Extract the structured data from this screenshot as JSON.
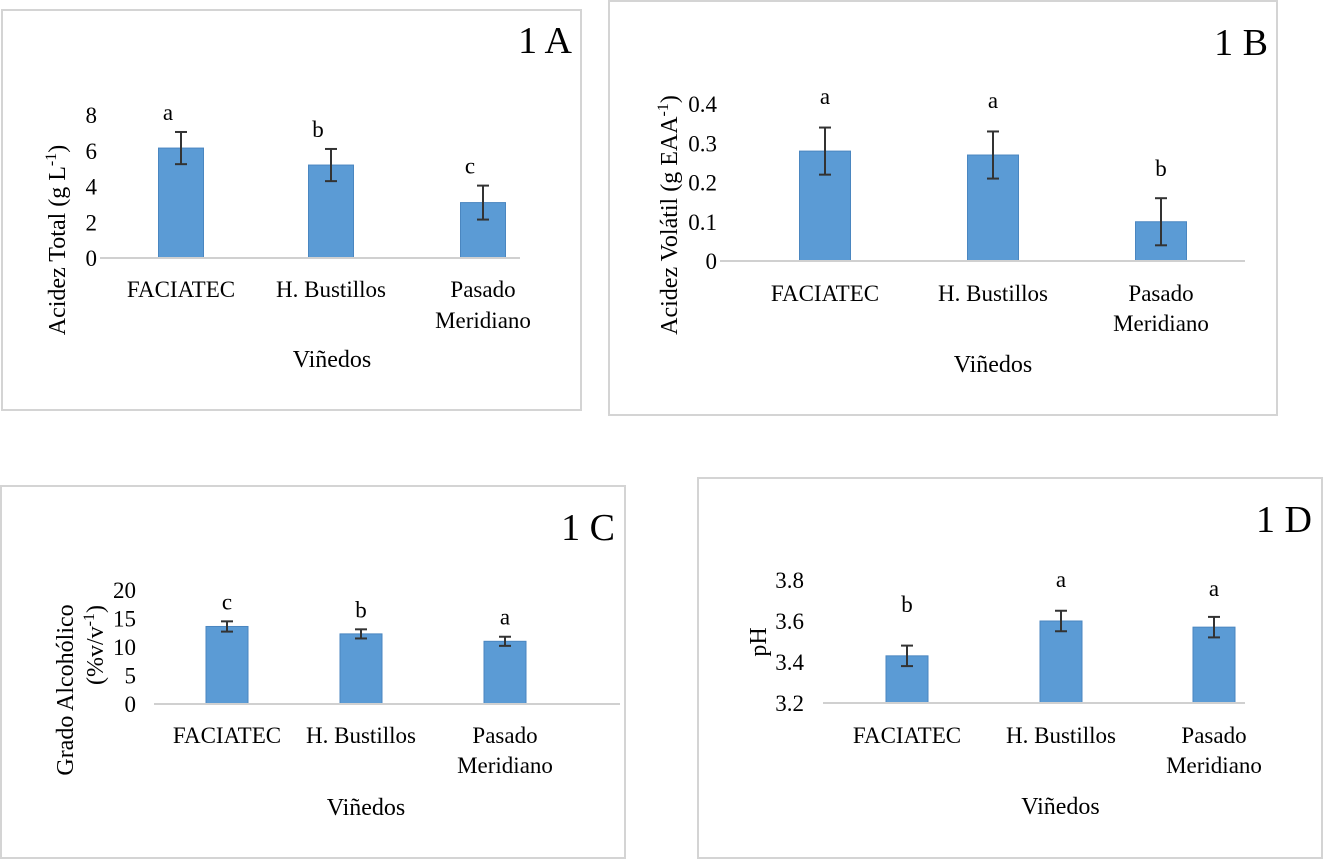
{
  "chart_data": [
    {
      "id": "A",
      "type": "bar",
      "panel_label": "1 A",
      "title": "",
      "xlabel": "Viñedos",
      "ylabel_main": "Acidez Total (g L",
      "ylabel_sup": "-1",
      "ylabel_end": ")",
      "categories": [
        "FACIATEC",
        "H. Bustillos",
        "Pasado Meridiano"
      ],
      "category_lines": [
        [
          "FACIATEC"
        ],
        [
          "H. Bustillos"
        ],
        [
          "Pasado",
          "Meridiano"
        ]
      ],
      "values": [
        6.15,
        5.2,
        3.1
      ],
      "errors": [
        0.9,
        0.9,
        0.95
      ],
      "letters": [
        "a",
        "b",
        "c"
      ],
      "ylim": [
        0,
        8
      ],
      "yticks": [
        0,
        2,
        4,
        6,
        8
      ],
      "ytick_labels": [
        "0",
        "2",
        "4",
        "6",
        "8"
      ],
      "grid": false,
      "bar_color": "#5b9bd5"
    },
    {
      "id": "B",
      "type": "bar",
      "panel_label": "1 B",
      "title": "",
      "xlabel": "Viñedos",
      "ylabel_main": "Acidez Volátil (g EAA",
      "ylabel_sup": "-1",
      "ylabel_end": ")",
      "categories": [
        "FACIATEC",
        "H. Bustillos",
        "Pasado Meridiano"
      ],
      "category_lines": [
        [
          "FACIATEC"
        ],
        [
          "H. Bustillos"
        ],
        [
          "Pasado",
          "Meridiano"
        ]
      ],
      "values": [
        0.28,
        0.27,
        0.1
      ],
      "errors": [
        0.06,
        0.06,
        0.06
      ],
      "letters": [
        "a",
        "a",
        "b"
      ],
      "ylim": [
        0,
        0.4
      ],
      "yticks": [
        0,
        0.1,
        0.2,
        0.3,
        0.4
      ],
      "ytick_labels": [
        "0",
        "0.1",
        "0.2",
        "0.3",
        "0.4"
      ],
      "grid": false,
      "bar_color": "#5b9bd5"
    },
    {
      "id": "C",
      "type": "bar",
      "panel_label": "1 C",
      "title": "",
      "xlabel": "Viñedos",
      "ylabel_main": "Grado Alcohólico",
      "ylabel_line2_main": "(%v/v",
      "ylabel_sup": "-1",
      "ylabel_end": ")",
      "categories": [
        "FACIATEC",
        "H. Bustillos",
        "Pasado Meridiano"
      ],
      "category_lines": [
        [
          "FACIATEC"
        ],
        [
          "H. Bustillos"
        ],
        [
          "Pasado",
          "Meridiano"
        ]
      ],
      "values": [
        13.6,
        12.3,
        11.0
      ],
      "errors": [
        0.9,
        0.8,
        0.8
      ],
      "letters": [
        "c",
        "b",
        "a"
      ],
      "ylim": [
        0,
        20
      ],
      "yticks": [
        0,
        5,
        10,
        15,
        20
      ],
      "ytick_labels": [
        "0",
        "5",
        "10",
        "15",
        "20"
      ],
      "grid": false,
      "bar_color": "#5b9bd5"
    },
    {
      "id": "D",
      "type": "bar",
      "panel_label": "1 D",
      "title": "",
      "xlabel": "Viñedos",
      "ylabel_main": "pH",
      "ylabel_sup": "",
      "ylabel_end": "",
      "categories": [
        "FACIATEC",
        "H. Bustillos",
        "Pasado Meridiano"
      ],
      "category_lines": [
        [
          "FACIATEC"
        ],
        [
          "H. Bustillos"
        ],
        [
          "Pasado",
          "Meridiano"
        ]
      ],
      "values": [
        3.43,
        3.6,
        3.57
      ],
      "errors": [
        0.05,
        0.05,
        0.05
      ],
      "letters": [
        "b",
        "a",
        "a"
      ],
      "ylim": [
        3.2,
        3.8
      ],
      "yticks": [
        3.2,
        3.4,
        3.6,
        3.8
      ],
      "ytick_labels": [
        "3.2",
        "3.4",
        "3.6",
        "3.8"
      ],
      "grid": false,
      "bar_color": "#5b9bd5"
    }
  ]
}
